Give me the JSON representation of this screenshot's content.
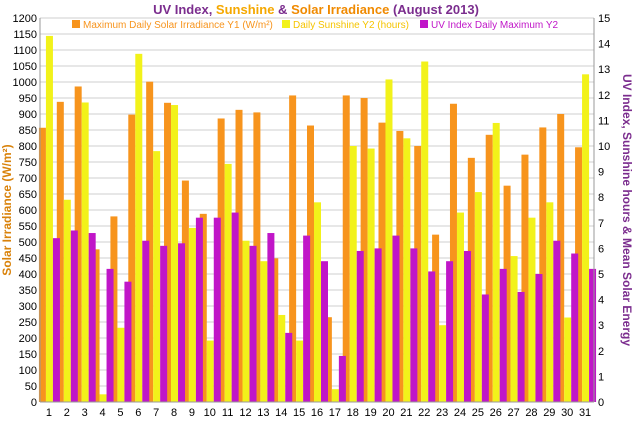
{
  "chart_data": {
    "type": "bar",
    "title_parts": [
      {
        "text": "UV Index",
        "color": "#7b2d8e"
      },
      {
        "text": ", ",
        "color": "#7b2d8e"
      },
      {
        "text": "Sunshine",
        "color": "#f5a800"
      },
      {
        "text": " & ",
        "color": "#7b2d8e"
      },
      {
        "text": "Solar Irradiance",
        "color": "#f08a00"
      },
      {
        "text": " (August 2013)",
        "color": "#7b2d8e"
      }
    ],
    "ylabel_left": "Solar Irradiance (W/m²)",
    "ylabel_right": "UV Index, Sunshine hours & Mean Solar Energy",
    "ylim_left": [
      0,
      1200
    ],
    "ylim_right": [
      0,
      15
    ],
    "left_ticks": [
      0,
      50,
      100,
      150,
      200,
      250,
      300,
      350,
      400,
      450,
      500,
      550,
      600,
      650,
      700,
      750,
      800,
      850,
      900,
      950,
      1000,
      1050,
      1100,
      1150,
      1200
    ],
    "right_ticks": [
      0,
      1,
      2,
      3,
      4,
      5,
      6,
      7,
      8,
      9,
      10,
      11,
      12,
      13,
      14,
      15
    ],
    "categories": [
      "1",
      "2",
      "3",
      "4",
      "5",
      "6",
      "7",
      "8",
      "9",
      "10",
      "11",
      "12",
      "13",
      "14",
      "15",
      "16",
      "17",
      "18",
      "19",
      "20",
      "21",
      "22",
      "23",
      "24",
      "25",
      "26",
      "27",
      "28",
      "29",
      "30",
      "31"
    ],
    "series": [
      {
        "name": "Maximum Daily Solar Irradiance Y1 (W/m²)",
        "axis": "left",
        "color": "#f7941d",
        "values": [
          857,
          938,
          986,
          477,
          580,
          898,
          1001,
          935,
          692,
          588,
          886,
          913,
          905,
          449,
          958,
          864,
          265,
          958,
          950,
          873,
          847,
          800,
          523,
          932,
          763,
          835,
          676,
          773,
          858,
          900,
          796
        ]
      },
      {
        "name": "Daily Sunshine Y2 (hours)",
        "axis": "right",
        "color": "#f2f21a",
        "values": [
          14.3,
          7.9,
          11.7,
          0.3,
          2.9,
          13.6,
          9.8,
          11.6,
          6.8,
          2.4,
          9.3,
          6.3,
          5.5,
          3.4,
          2.4,
          7.8,
          0.5,
          10.0,
          9.9,
          12.6,
          10.3,
          13.3,
          3.0,
          7.4,
          8.2,
          10.9,
          5.7,
          7.2,
          7.8,
          3.3,
          12.8
        ]
      },
      {
        "name": "UV Index Daily Maximum Y2",
        "axis": "right",
        "color": "#c016c8",
        "values": [
          6.4,
          6.7,
          6.6,
          5.2,
          4.7,
          6.3,
          6.1,
          6.2,
          7.2,
          7.2,
          7.4,
          6.1,
          6.6,
          2.7,
          6.5,
          5.5,
          1.8,
          5.9,
          6.0,
          6.5,
          6.0,
          5.1,
          5.5,
          5.9,
          4.2,
          5.2,
          4.3,
          5.0,
          6.3,
          5.8,
          5.2
        ]
      }
    ],
    "colors": {
      "left_axis_text": "#d9820a",
      "right_axis_text": "#7b2d8e",
      "grid": "#cfcfcf"
    }
  }
}
